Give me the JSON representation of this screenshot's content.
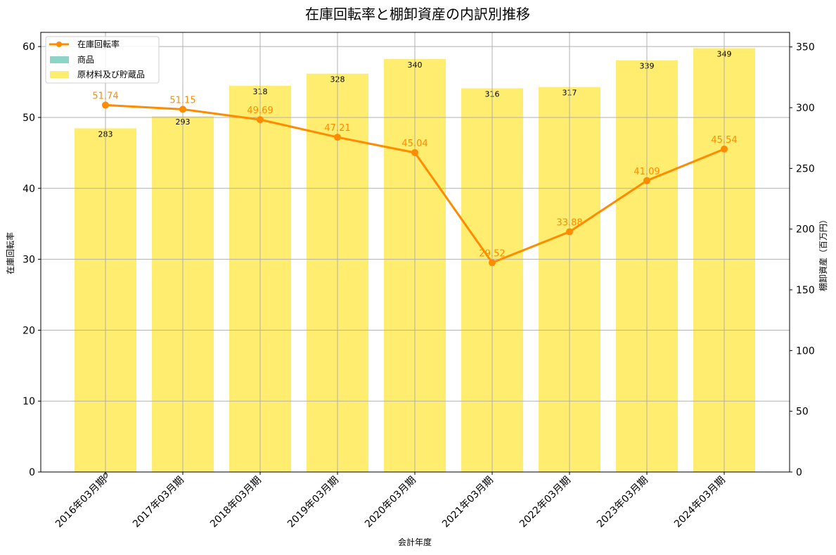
{
  "chart_data": {
    "type": "bar+line",
    "title": "在庫回転率と棚卸資産の内訳別推移",
    "xlabel": "会計年度",
    "ylabel_left": "在庫回転率",
    "ylabel_right": "棚卸資産（百万円）",
    "ylim_left": [
      0,
      62
    ],
    "ylim_right": [
      0,
      362
    ],
    "yticks_left": [
      0,
      10,
      20,
      30,
      40,
      50,
      60
    ],
    "yticks_right": [
      0,
      50,
      100,
      150,
      200,
      250,
      300,
      350
    ],
    "grid": true,
    "legend_position": "upper left",
    "categories": [
      "2016年03月期",
      "2017年03月期",
      "2018年03月期",
      "2019年03月期",
      "2020年03月期",
      "2021年03月期",
      "2022年03月期",
      "2023年03月期",
      "2024年03月期"
    ],
    "series": [
      {
        "name": "在庫回転率",
        "type": "line",
        "axis": "left",
        "color": "#ff8c00",
        "values": [
          51.74,
          51.15,
          49.69,
          47.21,
          45.04,
          29.52,
          33.88,
          41.09,
          45.54
        ]
      },
      {
        "name": "商品",
        "type": "bar",
        "axis": "right",
        "stacked": true,
        "color": "#8dd3c7",
        "values": [
          0,
          null,
          null,
          null,
          null,
          null,
          null,
          null,
          null
        ]
      },
      {
        "name": "原材料及び貯蔵品",
        "type": "bar",
        "axis": "right",
        "stacked": true,
        "color": "#ffed6f",
        "values": [
          283,
          293,
          318,
          328,
          340,
          316,
          317,
          339,
          349
        ]
      }
    ],
    "bar_labels": [
      "283",
      "293",
      "318",
      "328",
      "340",
      "316",
      "317",
      "339",
      "349"
    ],
    "bar_zero_label": "0",
    "line_labels": [
      "51.74",
      "51.15",
      "49.69",
      "47.21",
      "45.04",
      "29.52",
      "33.88",
      "41.09",
      "45.54"
    ]
  },
  "legend": {
    "items": [
      {
        "label": "在庫回転率",
        "color": "#ff8c00",
        "kind": "line"
      },
      {
        "label": "商品",
        "color": "#8dd3c7",
        "kind": "patch"
      },
      {
        "label": "原材料及び貯蔵品",
        "color": "#ffed6f",
        "kind": "patch"
      }
    ]
  }
}
